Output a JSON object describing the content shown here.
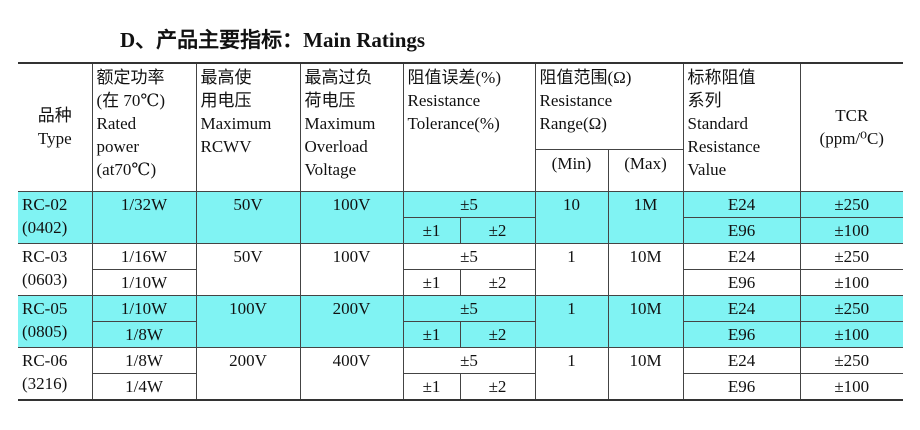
{
  "title": "D、产品主要指标：Main Ratings",
  "table": {
    "header": {
      "type": [
        "品种",
        "Type"
      ],
      "power": [
        "额定功率",
        "(在 70℃)",
        "Rated",
        "power",
        "(at70℃)"
      ],
      "voltage": [
        "最高使",
        "用电压",
        "Maximum",
        "RCWV"
      ],
      "overload": [
        "最高过负",
        "荷电压",
        "Maximum",
        "Overload",
        "Voltage"
      ],
      "tolerance": [
        "阻值误差(%)",
        "Resistance",
        "Tolerance(%)"
      ],
      "range": [
        "阻值范围(Ω)",
        "Resistance",
        "Range(Ω)"
      ],
      "min": "(Min)",
      "max": "(Max)",
      "series": [
        "标称阻值",
        "系列",
        "Standard",
        "Resistance",
        "Value"
      ],
      "tcr": [
        "TCR",
        "(ppm/⁰C)"
      ]
    },
    "rows": [
      {
        "type": [
          "RC-02",
          "(0402)"
        ],
        "power": [
          "1/32W"
        ],
        "voltage": "50V",
        "overload": "100V",
        "tolerance": "±5",
        "tolerance_split": [
          "±1",
          "±2"
        ],
        "min": "10",
        "max": "1M",
        "series": [
          "E24",
          "E96"
        ],
        "tcr": [
          "±250",
          "±100"
        ],
        "highlight": true
      },
      {
        "type": [
          "RC-03",
          "(0603)"
        ],
        "power": [
          "1/16W",
          "1/10W"
        ],
        "voltage": "50V",
        "overload": "100V",
        "tolerance": "±5",
        "tolerance_split": [
          "±1",
          "±2"
        ],
        "min": "1",
        "max": "10M",
        "series": [
          "E24",
          "E96"
        ],
        "tcr": [
          "±250",
          "±100"
        ],
        "highlight": false
      },
      {
        "type": [
          "RC-05",
          "(0805)"
        ],
        "power": [
          "1/10W",
          "1/8W"
        ],
        "voltage": "100V",
        "overload": "200V",
        "tolerance": "±5",
        "tolerance_split": [
          "±1",
          "±2"
        ],
        "min": "1",
        "max": "10M",
        "series": [
          "E24",
          "E96"
        ],
        "tcr": [
          "±250",
          "±100"
        ],
        "highlight": true
      },
      {
        "type": [
          "RC-06",
          "(3216)"
        ],
        "power": [
          "1/8W",
          "1/4W"
        ],
        "voltage": "200V",
        "overload": "400V",
        "tolerance": "±5",
        "tolerance_split": [
          "±1",
          "±2"
        ],
        "min": "1",
        "max": "10M",
        "series": [
          "E24",
          "E96"
        ],
        "tcr": [
          "±250",
          "±100"
        ],
        "highlight": false
      }
    ]
  }
}
